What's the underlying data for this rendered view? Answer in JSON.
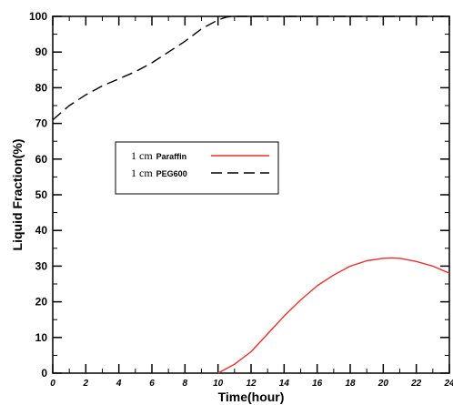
{
  "chart_data": {
    "type": "line",
    "xlabel": "Time(hour)",
    "ylabel": "Liquid Fraction(%)",
    "xlim": [
      0,
      24
    ],
    "ylim": [
      0,
      100
    ],
    "xticks": [
      0,
      2,
      4,
      6,
      8,
      10,
      12,
      14,
      16,
      18,
      20,
      22,
      24
    ],
    "yticks": [
      0,
      10,
      20,
      30,
      40,
      50,
      60,
      70,
      80,
      90,
      100
    ],
    "grid": false,
    "legend_position": "upper-left",
    "series": [
      {
        "name": "Paraffin",
        "legend_prefix": "1 cm",
        "color": "#e8312f",
        "dash": "solid",
        "x": [
          10,
          11,
          12,
          13,
          14,
          15,
          16,
          17,
          18,
          19,
          20,
          20.5,
          21,
          22,
          23,
          24
        ],
        "y": [
          0,
          2.5,
          6,
          11,
          16,
          20.5,
          24.5,
          27.5,
          30,
          31.5,
          32.2,
          32.3,
          32.2,
          31.3,
          30,
          28
        ]
      },
      {
        "name": "PEG600",
        "legend_prefix": "1 cm",
        "color": "#000000",
        "dash": "dashed",
        "x": [
          0,
          1,
          2,
          3,
          4,
          5,
          6,
          7,
          8,
          9,
          10,
          10.5,
          11,
          12,
          14,
          16,
          18,
          20,
          22,
          24
        ],
        "y": [
          71,
          75,
          78,
          80.5,
          82.5,
          84.5,
          87,
          90,
          93,
          96.5,
          99,
          99.8,
          100,
          100,
          100,
          100,
          100,
          100,
          100,
          100
        ]
      }
    ]
  }
}
